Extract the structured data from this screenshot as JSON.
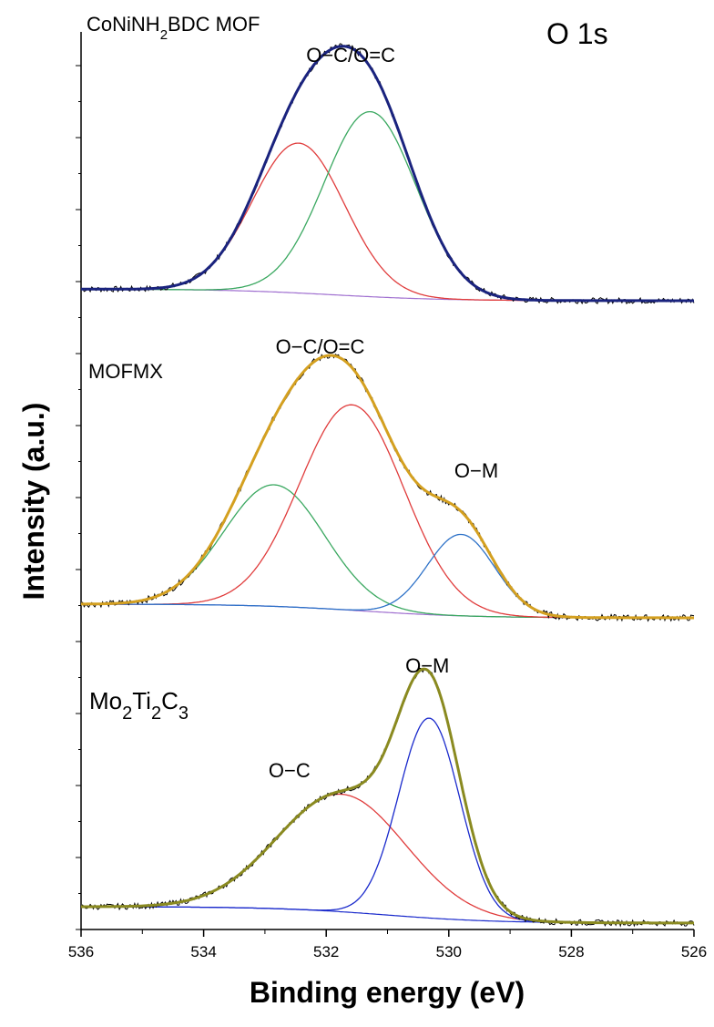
{
  "chart_data": {
    "type": "line",
    "title": "",
    "corner_label": "O 1s",
    "xlabel": "Binding energy (eV)",
    "ylabel": "Intensity (a.u.)",
    "xlim": [
      536,
      526
    ],
    "x_reversed": true,
    "xticks": [
      "536",
      "534",
      "532",
      "530",
      "528",
      "526"
    ],
    "x_tick_values": [
      536,
      534,
      532,
      530,
      528,
      526
    ],
    "grid": false,
    "panels": [
      {
        "id": "mof",
        "label": {
          "base": "CoNiNH",
          "sub1": "2",
          "mid": "BDC MOF",
          "sub2": "",
          "tail": ""
        },
        "annotations": [
          {
            "text": "O−C/O=C",
            "x": 531.6
          }
        ],
        "background": {
          "from": 0.05,
          "to": 0.0
        },
        "components": [
          {
            "name": "O-C",
            "color": "#e03c3c",
            "center": 532.45,
            "amplitude": 0.64,
            "sigma": 0.75
          },
          {
            "name": "O=C",
            "color": "#3aa860",
            "center": 531.28,
            "amplitude": 0.79,
            "sigma": 0.75
          }
        ],
        "envelope_color": "#1a237e",
        "raw_color": "#000000"
      },
      {
        "id": "mofmx",
        "label": {
          "base": "MOFMX",
          "sub1": "",
          "mid": "",
          "sub2": "",
          "tail": ""
        },
        "annotations": [
          {
            "text": "O−C/O=C",
            "x": 532.1
          },
          {
            "text": "O−M",
            "x": 529.55
          }
        ],
        "background": {
          "from": 0.055,
          "to": 0.0
        },
        "components": [
          {
            "name": "O-C",
            "color": "#3aa860",
            "center": 532.85,
            "amplitude": 0.485,
            "sigma": 0.82
          },
          {
            "name": "O=C",
            "color": "#e03c3c",
            "center": 531.58,
            "amplitude": 0.82,
            "sigma": 0.85
          },
          {
            "name": "O-M",
            "color": "#2e72c8",
            "center": 529.8,
            "amplitude": 0.325,
            "sigma": 0.55
          }
        ],
        "envelope_color": "#d4a020",
        "raw_color": "#000000"
      },
      {
        "id": "mxene",
        "label": {
          "base": "Mo",
          "sub1": "2",
          "mid": "Ti",
          "sub2": "2",
          "tail": "C",
          "sub3": "3"
        },
        "annotations": [
          {
            "text": "O−C",
            "x": 532.6
          },
          {
            "text": "O−M",
            "x": 530.35
          }
        ],
        "background": {
          "from": 0.07,
          "to": 0.0
        },
        "components": [
          {
            "name": "O-C",
            "color": "#e03c3c",
            "center": 531.75,
            "amplitude": 0.5,
            "sigma": 1.05
          },
          {
            "name": "O-M",
            "color": "#1a2acc",
            "center": 530.32,
            "amplitude": 0.85,
            "sigma": 0.5
          }
        ],
        "envelope_color": "#8a8a20",
        "raw_color": "#000000",
        "background_color": "#1a2acc"
      }
    ]
  }
}
